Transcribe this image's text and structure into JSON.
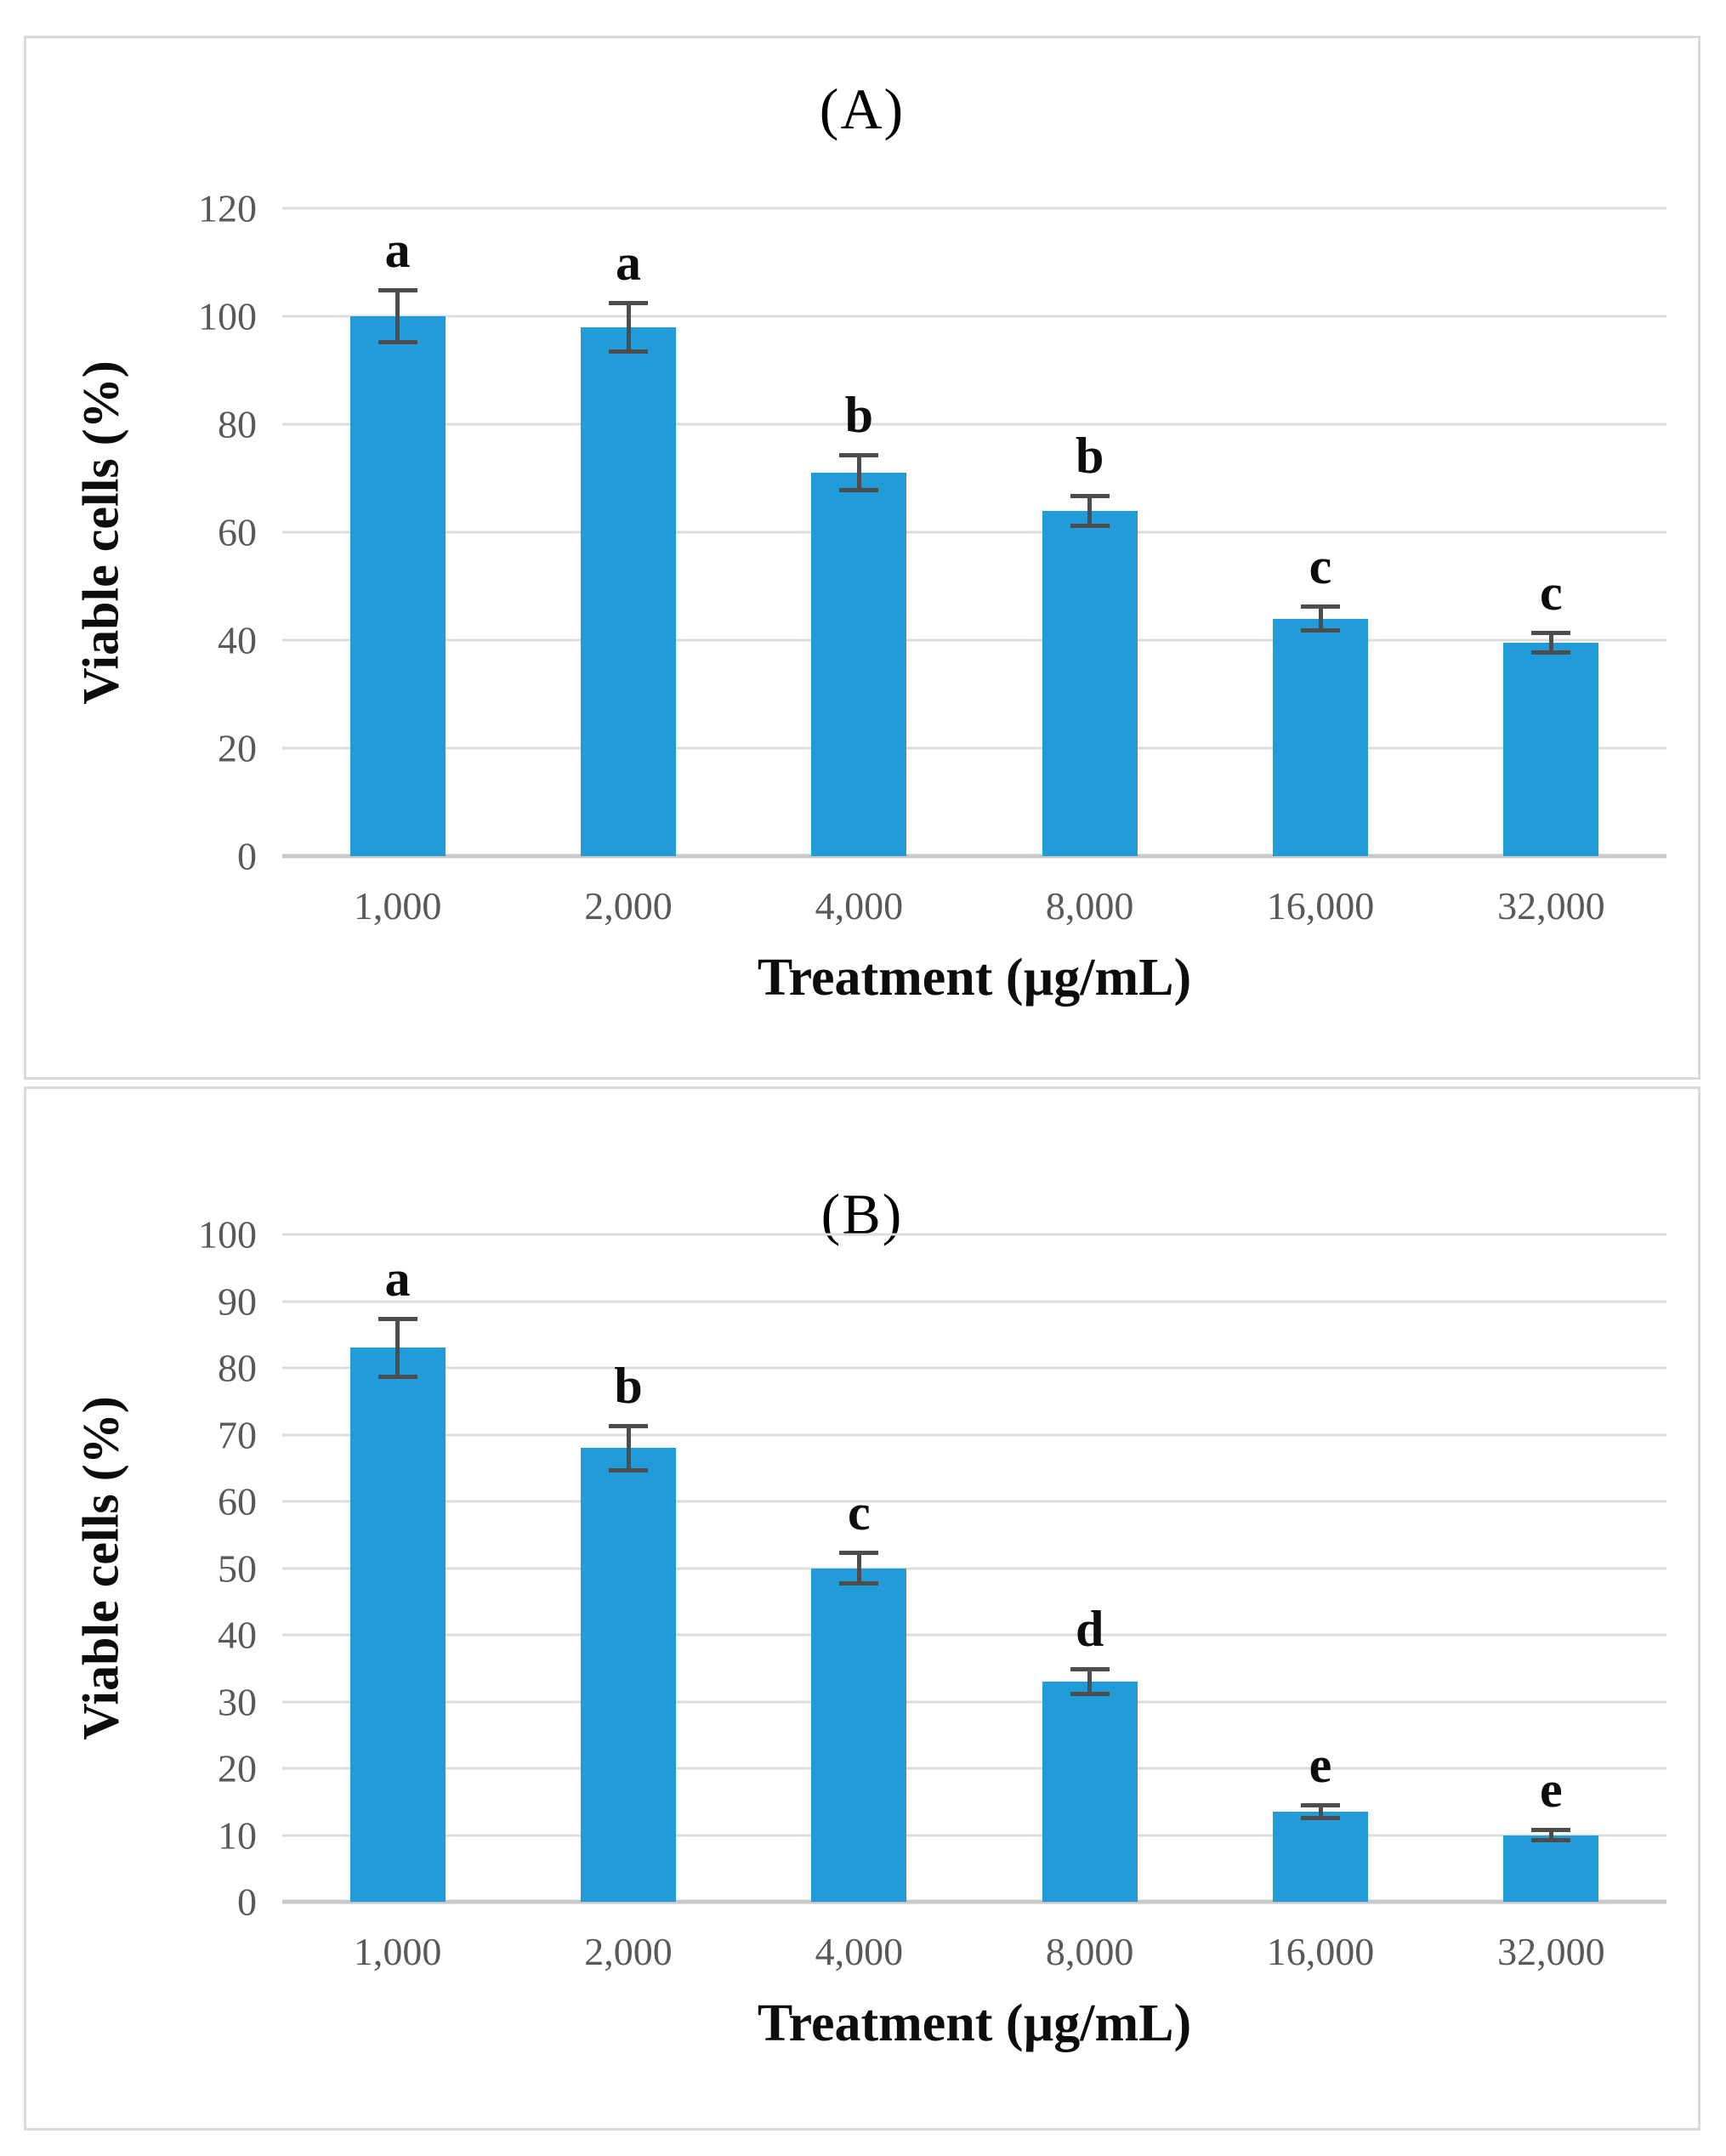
{
  "figure": {
    "background": "#ffffff",
    "panel_border_color": "#d9d9d9"
  },
  "chart_data": [
    {
      "type": "bar",
      "title": "(A)",
      "categories": [
        "1,000",
        "2,000",
        "4,000",
        "8,000",
        "16,000",
        "32,000"
      ],
      "values": [
        100,
        98,
        71,
        64,
        44,
        39.5
      ],
      "error_bars": [
        5,
        4.7,
        3.5,
        3,
        2.5,
        2
      ],
      "significance_letters": [
        "a",
        "a",
        "b",
        "b",
        "c",
        "c"
      ],
      "xlabel": "Treatment (µg/mL)",
      "ylabel": "Viable cells (%)",
      "ylim": [
        0,
        120
      ],
      "yticks": [
        0,
        20,
        40,
        60,
        80,
        100,
        120
      ],
      "grid": true,
      "legend": "none",
      "bar_color": "#219cd8",
      "error_bar_color": "#4d4d4d",
      "tick_label_color": "#595959",
      "gridline_color": "#dcdcdc",
      "axis_line_color": "#c9c9c9"
    },
    {
      "type": "bar",
      "title": "(B)",
      "categories": [
        "1,000",
        "2,000",
        "4,000",
        "8,000",
        "16,000",
        "32,000"
      ],
      "values": [
        83,
        68,
        50,
        33,
        13.5,
        10
      ],
      "error_bars": [
        4.5,
        3.5,
        2.5,
        2,
        1.2,
        1
      ],
      "significance_letters": [
        "a",
        "b",
        "c",
        "d",
        "e",
        "e"
      ],
      "xlabel": "Treatment (µg/mL)",
      "ylabel": "Viable cells (%)",
      "ylim": [
        0,
        100
      ],
      "yticks": [
        0,
        10,
        20,
        30,
        40,
        50,
        60,
        70,
        80,
        90,
        100
      ],
      "grid": true,
      "legend": "none",
      "bar_color": "#219cd8",
      "error_bar_color": "#4d4d4d",
      "tick_label_color": "#595959",
      "gridline_color": "#dcdcdc",
      "axis_line_color": "#c9c9c9"
    }
  ]
}
